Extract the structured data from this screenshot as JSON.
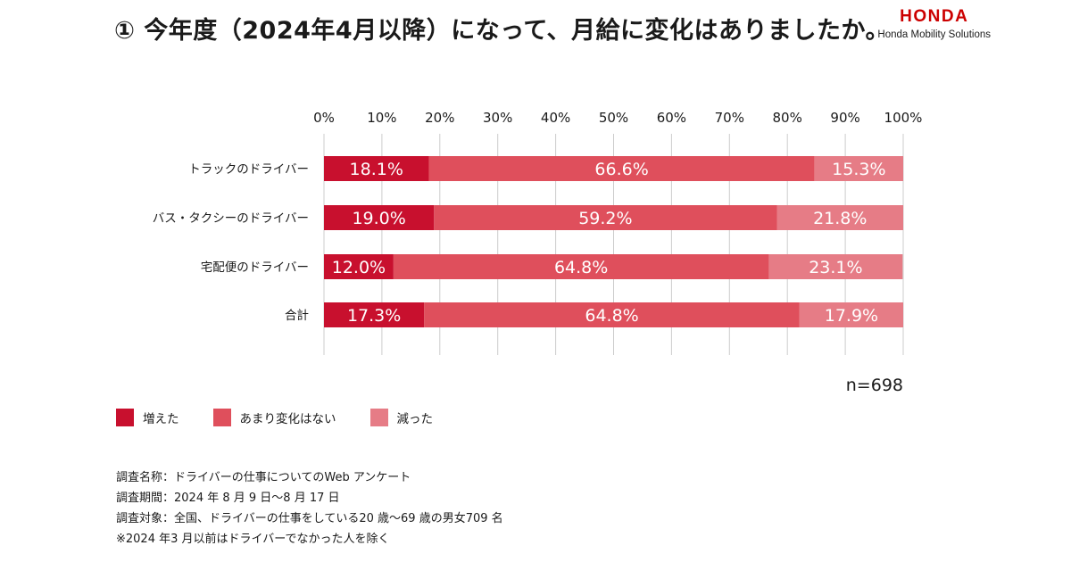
{
  "header": {
    "title": "① 今年度（2024年4月以降）になって、月給に変化はありましたか。",
    "brand_logo": "HONDA",
    "brand_sub": "Honda Mobility Solutions"
  },
  "colors": {
    "increased": "#c8102e",
    "no_change": "#df4f5c",
    "decreased": "#e67c86",
    "grid": "#cccccc"
  },
  "chart_data": {
    "type": "bar",
    "orientation": "horizontal",
    "stacked": true,
    "xlim": [
      0,
      100
    ],
    "x_ticks": [
      "0%",
      "10%",
      "20%",
      "30%",
      "40%",
      "50%",
      "60%",
      "70%",
      "80%",
      "90%",
      "100%"
    ],
    "categories": [
      "トラックのドライバー",
      "バス・タクシーのドライバー",
      "宅配便のドライバー",
      "合計"
    ],
    "series": [
      {
        "name": "増えた",
        "values": [
          18.1,
          19.0,
          12.0,
          17.3
        ],
        "labels": [
          "18.1%",
          "19.0%",
          "12.0%",
          "17.3%"
        ]
      },
      {
        "name": "あまり変化はない",
        "values": [
          66.6,
          59.2,
          64.8,
          64.8
        ],
        "labels": [
          "66.6%",
          "59.2%",
          "64.8%",
          "64.8%"
        ]
      },
      {
        "name": "減った",
        "values": [
          15.3,
          21.8,
          23.1,
          17.9
        ],
        "labels": [
          "15.3%",
          "21.8%",
          "23.1%",
          "17.9%"
        ]
      }
    ],
    "sample_size": "n=698",
    "legend_position": "bottom-left"
  },
  "legend": [
    {
      "label": "増えた"
    },
    {
      "label": "あまり変化はない"
    },
    {
      "label": "減った"
    }
  ],
  "notes": [
    "調査名称：ドライバーの仕事についてのWeb アンケート",
    "調査期間：2024 年 8 月 9 日〜8 月 17 日",
    "調査対象：全国、ドライバーの仕事をしている20 歳〜69 歳の男女709 名",
    "※2024 年3 月以前はドライバーでなかった人を除く"
  ]
}
